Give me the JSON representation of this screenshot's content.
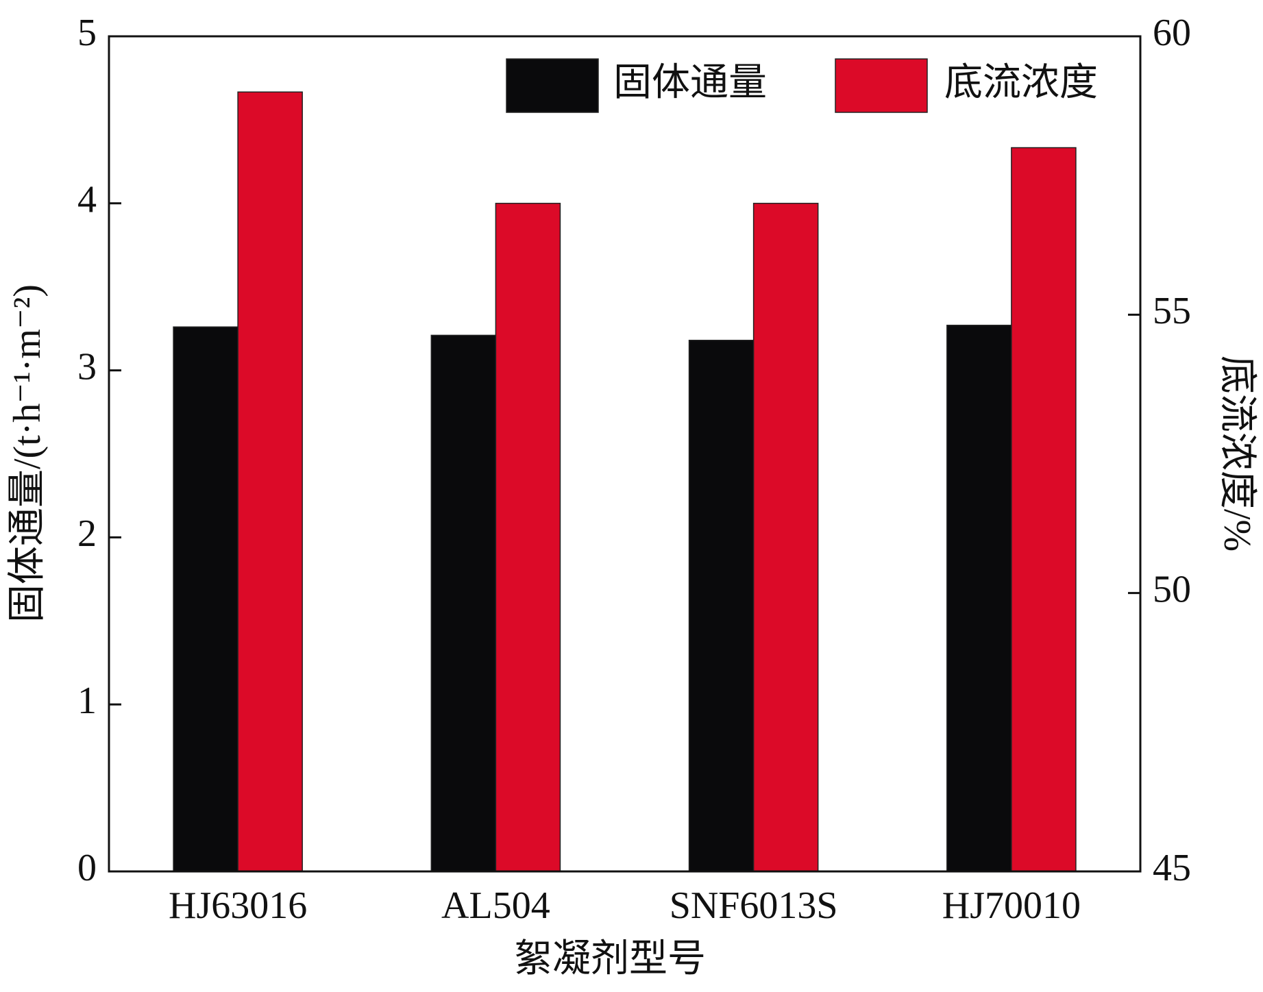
{
  "chart_data": {
    "type": "bar",
    "categories": [
      "HJ63016",
      "AL504",
      "SNF6013S",
      "HJ70010"
    ],
    "series": [
      {
        "name": "固体通量",
        "color": "#0a0a0c",
        "values": [
          3.26,
          3.21,
          3.18,
          3.27
        ]
      },
      {
        "name": "底流浓度",
        "color": "#dc0a28",
        "values": [
          59,
          57,
          57,
          58
        ],
        "axis": "y2"
      }
    ],
    "xlabel": "絮凝剂型号",
    "ylabel": "固体通量/(t·h⁻¹·m⁻²)",
    "y2label": "底流浓度/%",
    "ylim": [
      0,
      5
    ],
    "yticks": [
      0,
      1,
      2,
      3,
      4,
      5
    ],
    "y2lim": [
      45,
      60
    ],
    "y2ticks": [
      45,
      50,
      55,
      60
    ],
    "legend": "upper right",
    "grid": false
  }
}
